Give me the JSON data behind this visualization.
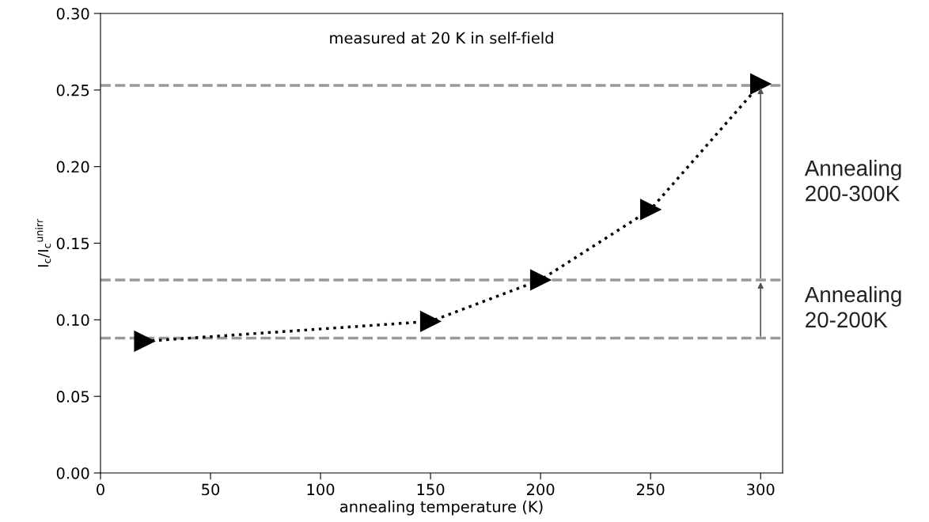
{
  "chart_data": {
    "type": "line",
    "xlabel": "annealing temperature (K)",
    "ylabel": "I$_{c}$/I$_{c}$$^{unirr}$",
    "x": [
      20,
      150,
      200,
      250,
      300
    ],
    "series": [
      {
        "color": "#000000",
        "values": [
          0.086,
          0.099,
          0.126,
          0.172,
          0.254
        ]
      }
    ],
    "marker": "triangle",
    "line_style": "dotted",
    "xlim": [
      0,
      310
    ],
    "xticks": [
      0,
      50,
      100,
      150,
      200,
      250,
      300
    ],
    "ylim": [
      0,
      0.3
    ],
    "yticks": [
      {
        "value": 0,
        "label": "0.00"
      },
      {
        "value": 0.05,
        "label": "0.05"
      },
      {
        "value": 0.1,
        "label": "0.10"
      },
      {
        "value": 0.15,
        "label": "0.15"
      },
      {
        "value": 0.2,
        "label": "0.20"
      },
      {
        "value": 0.25,
        "label": "0.25"
      },
      {
        "value": 0.3,
        "label": "0.30"
      }
    ],
    "ref_lines": [
      {
        "axis": "y",
        "value": 0.088,
        "color": "#999999",
        "line_style": "dashed"
      },
      {
        "axis": "y",
        "value": 0.126,
        "color": "#999999",
        "line_style": "dashed"
      },
      {
        "axis": "y",
        "value": 0.253,
        "color": "#999999",
        "line_style": "dashed"
      }
    ],
    "annotations": [
      "measured at 20 K in self-field",
      "Annealing\n20-200K",
      "Annealing\n200-300K"
    ],
    "grid": false,
    "legend": false
  }
}
